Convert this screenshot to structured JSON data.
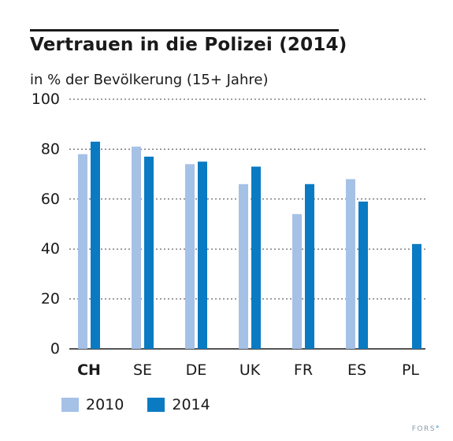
{
  "title": "Vertrauen in die Polizei (2014)",
  "subtitle": "in % der Bevölkerung (15+ Jahre)",
  "brand": "FORS",
  "colors": {
    "s2010": "#a6c1e6",
    "s2014": "#0a7bc2",
    "grid": "#444444"
  },
  "chart_data": {
    "type": "bar",
    "categories": [
      "CH",
      "SE",
      "DE",
      "UK",
      "FR",
      "ES",
      "PL"
    ],
    "highlight_category": "CH",
    "series": [
      {
        "name": "2010",
        "values": [
          78,
          81,
          74,
          66,
          54,
          68,
          null
        ]
      },
      {
        "name": "2014",
        "values": [
          83,
          77,
          75,
          73,
          66,
          59,
          42
        ]
      }
    ],
    "ylim": [
      0,
      100
    ],
    "yticks": [
      0,
      20,
      40,
      60,
      80,
      100
    ],
    "grid": true,
    "legend": "bottom-left"
  }
}
